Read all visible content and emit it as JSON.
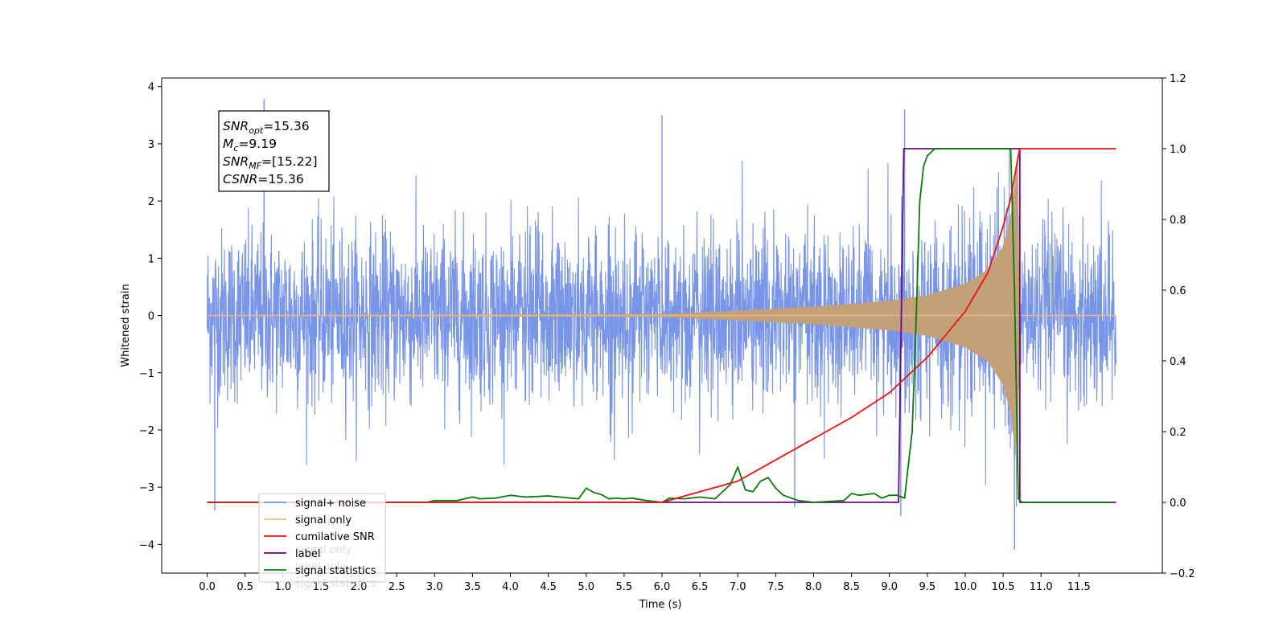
{
  "chart_data": {
    "type": "line",
    "xlabel": "Time (s)",
    "ylabel": "Whitened strain",
    "xlim": [
      -0.6,
      12.6
    ],
    "ylim_left": [
      -4.5,
      4.15
    ],
    "ylim_right": [
      -0.2,
      1.2
    ],
    "x_ticks": [
      "0.0",
      "0.5",
      "1.0",
      "1.5",
      "2.0",
      "2.5",
      "3.0",
      "3.5",
      "4.0",
      "4.5",
      "5.0",
      "5.5",
      "6.0",
      "6.5",
      "7.0",
      "7.5",
      "8.0",
      "8.5",
      "9.0",
      "9.5",
      "10.0",
      "10.5",
      "11.0",
      "11.5"
    ],
    "y_ticks_left": [
      "4",
      "3",
      "2",
      "1",
      "0",
      "−1",
      "−2",
      "−3",
      "−4"
    ],
    "y_ticks_right": [
      "1.2",
      "1.0",
      "0.8",
      "0.6",
      "0.4",
      "0.2",
      "0.0",
      "−0.2"
    ],
    "annotation": [
      {
        "sym": "SNR",
        "sub": "opt",
        "value": "=15.36"
      },
      {
        "sym": "M",
        "sub": "c",
        "value": "=9.19"
      },
      {
        "sym": "SNR",
        "sub": "MF",
        "value": "=[15.22]"
      },
      {
        "sym": "CSNR",
        "sub": "",
        "value": "=15.36"
      }
    ],
    "series": [
      {
        "name": "signal+ noise",
        "axis": "left",
        "color": "#7895e8",
        "style": "noise band, roughly ±2.5 std with spikes to about ±3.8",
        "spikes": [
          [
            0.75,
            3.78
          ],
          [
            9.2,
            3.6
          ],
          [
            10.65,
            -4.1
          ],
          [
            0.1,
            -3.4
          ],
          [
            9.15,
            -3.5
          ],
          [
            7.75,
            -3.35
          ],
          [
            6.0,
            3.5
          ]
        ]
      },
      {
        "name": "signal only",
        "axis": "left",
        "color": "#e8b87e",
        "style": "chirp envelope",
        "envelope": {
          "x": [
            0.0,
            6.0,
            7.0,
            8.0,
            9.0,
            9.5,
            10.0,
            10.3,
            10.5,
            10.6,
            10.65,
            10.7,
            10.71,
            12.0
          ],
          "y": [
            0.0,
            0.02,
            0.08,
            0.15,
            0.25,
            0.35,
            0.55,
            0.8,
            1.2,
            1.7,
            2.2,
            2.9,
            0.0,
            0.0
          ]
        }
      },
      {
        "name": "cumilative SNR",
        "axis": "right",
        "color": "#ee1111",
        "x": [
          0.0,
          6.0,
          6.5,
          7.0,
          7.5,
          8.0,
          8.5,
          9.0,
          9.5,
          10.0,
          10.3,
          10.5,
          10.6,
          10.65,
          10.7,
          10.72,
          11.5,
          11.99
        ],
        "y": [
          0.0,
          0.0,
          0.03,
          0.06,
          0.12,
          0.18,
          0.24,
          0.31,
          0.41,
          0.54,
          0.65,
          0.78,
          0.86,
          0.92,
          0.98,
          1.0,
          1.0,
          1.0
        ]
      },
      {
        "name": "label",
        "axis": "right",
        "color": "#6a0a84",
        "x": [
          0.0,
          9.12,
          9.19,
          10.72,
          10.72,
          11.99
        ],
        "y": [
          0.0,
          0.0,
          1.0,
          1.0,
          0.0,
          0.0
        ]
      },
      {
        "name": "signal statistics",
        "axis": "right",
        "color": "#0a7a0a",
        "x": [
          0.0,
          2.9,
          3.0,
          3.3,
          3.5,
          3.6,
          3.8,
          4.0,
          4.2,
          4.5,
          4.8,
          4.9,
          5.0,
          5.1,
          5.2,
          5.3,
          5.4,
          5.5,
          5.6,
          5.8,
          6.0,
          6.1,
          6.3,
          6.5,
          6.7,
          6.9,
          7.0,
          7.1,
          7.2,
          7.3,
          7.4,
          7.5,
          7.6,
          7.8,
          8.0,
          8.4,
          8.5,
          8.6,
          8.8,
          8.9,
          9.0,
          9.1,
          9.2,
          9.3,
          9.35,
          9.4,
          9.45,
          9.5,
          9.55,
          9.6,
          9.7,
          10.0,
          10.3,
          10.6,
          10.65,
          10.7,
          10.75,
          11.0,
          11.92
        ],
        "y": [
          0.0,
          0.0,
          0.005,
          0.005,
          0.015,
          0.01,
          0.012,
          0.02,
          0.015,
          0.018,
          0.012,
          0.01,
          0.04,
          0.028,
          0.022,
          0.01,
          0.012,
          0.01,
          0.012,
          0.005,
          0.0,
          0.012,
          0.01,
          0.015,
          0.01,
          0.05,
          0.1,
          0.035,
          0.03,
          0.06,
          0.07,
          0.04,
          0.02,
          0.005,
          0.0,
          0.005,
          0.025,
          0.02,
          0.025,
          0.012,
          0.02,
          0.02,
          0.012,
          0.2,
          0.5,
          0.85,
          0.95,
          0.98,
          0.99,
          1.0,
          1.0,
          1.0,
          1.0,
          1.0,
          0.6,
          0.01,
          0.0,
          0.0,
          0.0
        ]
      }
    ],
    "legend": {
      "placement": "lower-left",
      "entries": [
        {
          "label": "signal+ noise",
          "color": "#7895e8"
        },
        {
          "label": "signal only",
          "color": "#f5c27a"
        },
        {
          "label": "cumilative SNR",
          "color": "#ee1111"
        },
        {
          "label": "label",
          "color": "#6a0a84"
        },
        {
          "label": "signal statistics",
          "color": "#0a7a0a"
        }
      ],
      "ghost_entries": [
        "signal only",
        "label only",
        "signal statistics"
      ]
    }
  }
}
